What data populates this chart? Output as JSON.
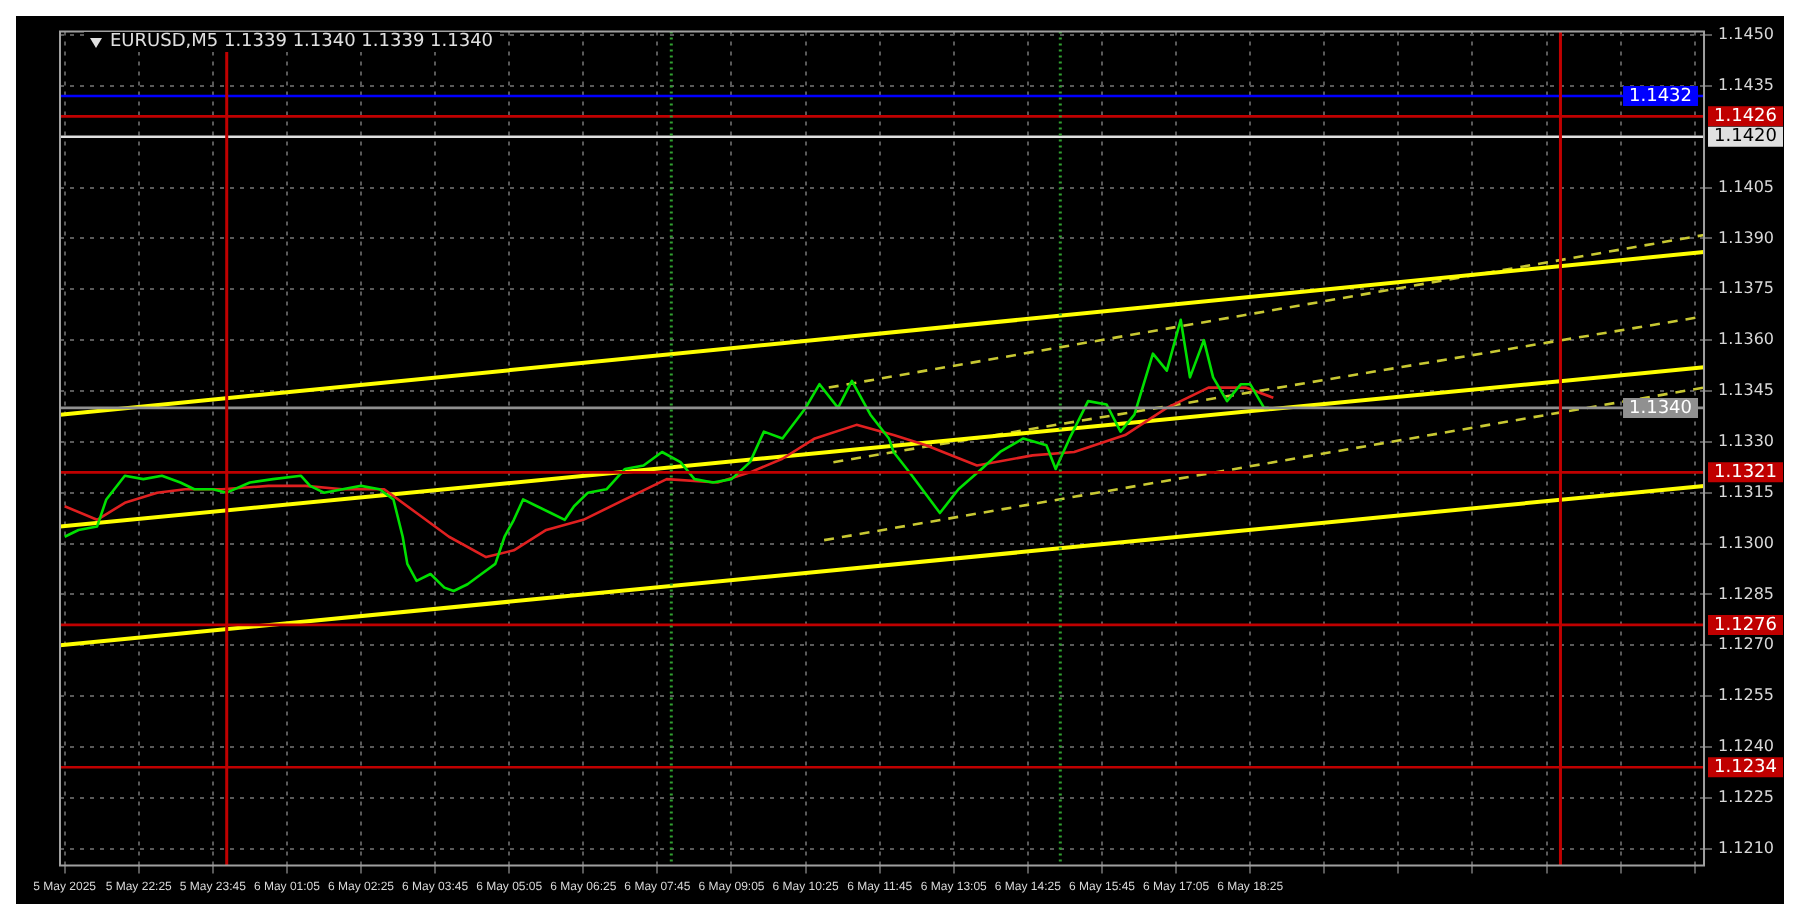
{
  "chart_data": {
    "type": "line",
    "title": "EURUSD,M5  1.1339 1.1340 1.1339 1.1340",
    "xlim": [
      "2025-05-05T21:00",
      "2025-05-07T02:35"
    ],
    "ylim": [
      1.1205,
      1.1451
    ],
    "xticks": [
      {
        "value": "2025-05-05T21:05",
        "label": "5 May 2025"
      },
      {
        "value": "2025-05-05T22:25",
        "label": "5 May 22:25"
      },
      {
        "value": "2025-05-05T23:45",
        "label": "5 May 23:45"
      },
      {
        "value": "2025-05-06T01:05",
        "label": "6 May 01:05"
      },
      {
        "value": "2025-05-06T02:25",
        "label": "6 May 02:25"
      },
      {
        "value": "2025-05-06T03:45",
        "label": "6 May 03:45"
      },
      {
        "value": "2025-05-06T05:05",
        "label": "6 May 05:05"
      },
      {
        "value": "2025-05-06T06:25",
        "label": "6 May 06:25"
      },
      {
        "value": "2025-05-06T07:45",
        "label": "6 May 07:45"
      },
      {
        "value": "2025-05-06T09:05",
        "label": "6 May 09:05"
      },
      {
        "value": "2025-05-06T10:25",
        "label": "6 May 10:25"
      },
      {
        "value": "2025-05-06T11:45",
        "label": "6 May 11:45"
      },
      {
        "value": "2025-05-06T13:05",
        "label": "6 May 13:05"
      },
      {
        "value": "2025-05-06T14:25",
        "label": "6 May 14:25"
      },
      {
        "value": "2025-05-06T15:45",
        "label": "6 May 15:45"
      },
      {
        "value": "2025-05-06T17:05",
        "label": "6 May 17:05"
      },
      {
        "value": "2025-05-06T18:25",
        "label": "6 May 18:25"
      },
      {
        "value": "2025-05-06T19:45",
        "label": null
      },
      {
        "value": "2025-05-06T21:05",
        "label": null
      },
      {
        "value": "2025-05-06T22:25",
        "label": null
      },
      {
        "value": "2025-05-06T23:45",
        "label": null
      },
      {
        "value": "2025-05-07T01:05",
        "label": null
      },
      {
        "value": "2025-05-07T02:25",
        "label": null
      }
    ],
    "yticks": [
      {
        "value": 1.121,
        "label": "1.1210"
      },
      {
        "value": 1.1225,
        "label": "1.1225"
      },
      {
        "value": 1.124,
        "label": "1.1240"
      },
      {
        "value": 1.1255,
        "label": "1.1255"
      },
      {
        "value": 1.127,
        "label": "1.1270"
      },
      {
        "value": 1.1285,
        "label": "1.1285"
      },
      {
        "value": 1.13,
        "label": "1.1300"
      },
      {
        "value": 1.1315,
        "label": "1.1315"
      },
      {
        "value": 1.133,
        "label": "1.1330"
      },
      {
        "value": 1.1345,
        "label": "1.1345"
      },
      {
        "value": 1.136,
        "label": "1.1360"
      },
      {
        "value": 1.1375,
        "label": "1.1375"
      },
      {
        "value": 1.139,
        "label": "1.1390"
      },
      {
        "value": 1.1405,
        "label": "1.1405"
      },
      {
        "value": 1.1435,
        "label": "1.1435"
      },
      {
        "value": 1.145,
        "label": "1.1450"
      }
    ],
    "grid": true,
    "legend": false,
    "marker": "none",
    "series": [
      {
        "color": "#00e000",
        "x": [
          "2025-05-05T21:05",
          "2025-05-05T21:20",
          "2025-05-05T21:40",
          "2025-05-05T21:50",
          "2025-05-05T22:10",
          "2025-05-05T22:30",
          "2025-05-05T22:50",
          "2025-05-05T23:10",
          "2025-05-05T23:25",
          "2025-05-05T23:45",
          "2025-05-06T00:00",
          "2025-05-06T00:25",
          "2025-05-06T00:50",
          "2025-05-06T01:20",
          "2025-05-06T01:30",
          "2025-05-06T01:45",
          "2025-05-06T02:05",
          "2025-05-06T02:25",
          "2025-05-06T02:45",
          "2025-05-06T03:00",
          "2025-05-06T03:10",
          "2025-05-06T03:15",
          "2025-05-06T03:25",
          "2025-05-06T03:40",
          "2025-05-06T03:55",
          "2025-05-06T04:05",
          "2025-05-06T04:20",
          "2025-05-06T04:35",
          "2025-05-06T04:50",
          "2025-05-06T05:00",
          "2025-05-06T05:10",
          "2025-05-06T05:20",
          "2025-05-06T05:35",
          "2025-05-06T05:50",
          "2025-05-06T06:05",
          "2025-05-06T06:15",
          "2025-05-06T06:30",
          "2025-05-06T06:50",
          "2025-05-06T07:10",
          "2025-05-06T07:30",
          "2025-05-06T07:50",
          "2025-05-06T08:10",
          "2025-05-06T08:25",
          "2025-05-06T08:45",
          "2025-05-06T09:05",
          "2025-05-06T09:25",
          "2025-05-06T09:40",
          "2025-05-06T10:00",
          "2025-05-06T10:25",
          "2025-05-06T10:40",
          "2025-05-06T11:00",
          "2025-05-06T11:15",
          "2025-05-06T11:35",
          "2025-05-06T11:55",
          "2025-05-06T12:00",
          "2025-05-06T12:20",
          "2025-05-06T12:50",
          "2025-05-06T13:10",
          "2025-05-06T13:35",
          "2025-05-06T13:55",
          "2025-05-06T14:20",
          "2025-05-06T14:45",
          "2025-05-06T14:55",
          "2025-05-06T15:10",
          "2025-05-06T15:30",
          "2025-05-06T15:50",
          "2025-05-06T16:05",
          "2025-05-06T16:20",
          "2025-05-06T16:40",
          "2025-05-06T16:55",
          "2025-05-06T17:10",
          "2025-05-06T17:20",
          "2025-05-06T17:35",
          "2025-05-06T17:45",
          "2025-05-06T18:00",
          "2025-05-06T18:15",
          "2025-05-06T18:25",
          "2025-05-06T18:40",
          "2025-05-06T18:45"
        ],
        "values": [
          1.1302,
          1.1304,
          1.1305,
          1.1313,
          1.132,
          1.1319,
          1.132,
          1.1318,
          1.1316,
          1.1316,
          1.1315,
          1.1318,
          1.1319,
          1.132,
          1.1317,
          1.1315,
          1.1316,
          1.1317,
          1.1316,
          1.1313,
          1.1302,
          1.1294,
          1.1289,
          1.1291,
          1.1287,
          1.1286,
          1.1288,
          1.1291,
          1.1294,
          1.1302,
          1.1307,
          1.1313,
          1.1311,
          1.1309,
          1.1307,
          1.1311,
          1.1315,
          1.1316,
          1.1322,
          1.1323,
          1.1327,
          1.1324,
          1.1319,
          1.1318,
          1.1319,
          1.1324,
          1.1333,
          1.1331,
          1.134,
          1.1347,
          1.134,
          1.1348,
          1.1338,
          1.1331,
          1.1327,
          1.132,
          1.1309,
          1.1316,
          1.1322,
          1.1327,
          1.1331,
          1.1329,
          1.1322,
          1.1331,
          1.1342,
          1.1341,
          1.1333,
          1.1338,
          1.1356,
          1.1351,
          1.1366,
          1.1349,
          1.136,
          1.1349,
          1.1342,
          1.1347,
          1.1347,
          1.134,
          1.134
        ]
      },
      {
        "color": "#e02020",
        "x": [
          "2025-05-05T21:05",
          "2025-05-05T21:40",
          "2025-05-05T22:10",
          "2025-05-05T22:45",
          "2025-05-05T23:15",
          "2025-05-05T23:55",
          "2025-05-06T00:45",
          "2025-05-06T01:25",
          "2025-05-06T02:05",
          "2025-05-06T02:50",
          "2025-05-06T03:25",
          "2025-05-06T04:00",
          "2025-05-06T04:40",
          "2025-05-06T05:10",
          "2025-05-06T05:45",
          "2025-05-06T06:25",
          "2025-05-06T07:10",
          "2025-05-06T07:55",
          "2025-05-06T08:50",
          "2025-05-06T09:25",
          "2025-05-06T10:00",
          "2025-05-06T10:35",
          "2025-05-06T11:20",
          "2025-05-06T12:00",
          "2025-05-06T12:35",
          "2025-05-06T13:30",
          "2025-05-06T14:30",
          "2025-05-06T15:15",
          "2025-05-06T16:10",
          "2025-05-06T16:55",
          "2025-05-06T17:40",
          "2025-05-06T18:20",
          "2025-05-06T18:50"
        ],
        "values": [
          1.1311,
          1.1307,
          1.1312,
          1.1315,
          1.1316,
          1.1316,
          1.1317,
          1.1317,
          1.1316,
          1.1316,
          1.1309,
          1.1302,
          1.1296,
          1.1298,
          1.1304,
          1.1307,
          1.1313,
          1.1319,
          1.1318,
          1.1321,
          1.1325,
          1.1331,
          1.1335,
          1.1332,
          1.1329,
          1.1323,
          1.1326,
          1.1327,
          1.1332,
          1.134,
          1.1346,
          1.1346,
          1.1343
        ]
      },
      {
        "color": "#ffff00",
        "x": [
          "2025-05-05T21:00",
          "2025-05-07T02:35"
        ],
        "values": [
          1.1338,
          1.1386
        ]
      },
      {
        "color": "#ffff00",
        "x": [
          "2025-05-05T21:00",
          "2025-05-07T02:35"
        ],
        "values": [
          1.1305,
          1.1352
        ]
      },
      {
        "color": "#ffff00",
        "x": [
          "2025-05-05T21:00",
          "2025-05-07T02:35"
        ],
        "values": [
          1.127,
          1.1317
        ]
      },
      {
        "color": "#c8c832",
        "line_style": "dashed",
        "x": [
          "2025-05-06T10:50",
          "2025-05-07T02:35"
        ],
        "values": [
          1.1346,
          1.1391
        ]
      },
      {
        "color": "#c8c832",
        "line_style": "dashed",
        "x": [
          "2025-05-06T10:55",
          "2025-05-07T02:35"
        ],
        "values": [
          1.1324,
          1.1367
        ]
      },
      {
        "color": "#c8c832",
        "line_style": "dashed",
        "x": [
          "2025-05-06T10:45",
          "2025-05-07T02:35"
        ],
        "values": [
          1.1301,
          1.1346
        ]
      }
    ],
    "ref_lines": [
      {
        "axis": "y",
        "value": 1.1432,
        "label": "1.1432",
        "color": "#0000ff"
      },
      {
        "axis": "y",
        "value": 1.1426,
        "label": "1.1426",
        "color": "#c00000"
      },
      {
        "axis": "y",
        "value": 1.142,
        "label": "1.1420",
        "color": "#e0e0e0"
      },
      {
        "axis": "y",
        "value": 1.134,
        "label": "1.1340",
        "color": "#909090"
      },
      {
        "axis": "y",
        "value": 1.1321,
        "label": "1.1321",
        "color": "#c00000"
      },
      {
        "axis": "y",
        "value": 1.1276,
        "label": "1.1276",
        "color": "#c00000"
      },
      {
        "axis": "y",
        "value": 1.1234,
        "label": "1.1234",
        "color": "#c00000"
      },
      {
        "axis": "x",
        "value": "2025-05-06T00:00",
        "color": "#c00000"
      },
      {
        "axis": "x",
        "value": "2025-05-07T00:00",
        "color": "#c00000"
      },
      {
        "axis": "x",
        "value": "2025-05-06T08:00",
        "color": "#30a030",
        "line_style": "dotted"
      },
      {
        "axis": "x",
        "value": "2025-05-06T15:00",
        "color": "#30a030",
        "line_style": "dotted"
      }
    ]
  }
}
